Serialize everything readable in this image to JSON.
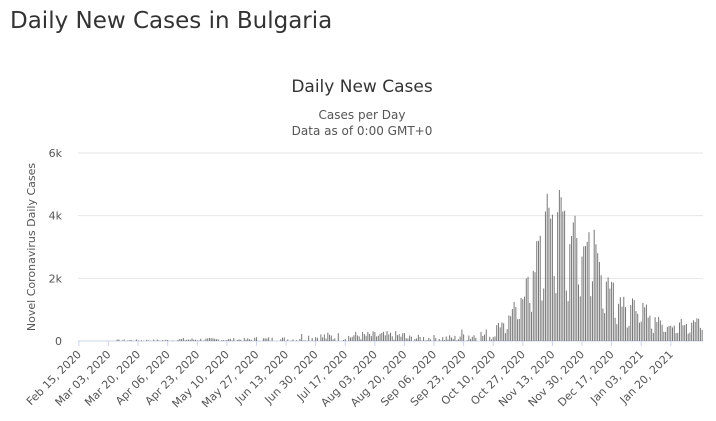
{
  "page": {
    "heading": "Daily New Cases in Bulgaria"
  },
  "chart_data": {
    "type": "bar",
    "title": "Daily New Cases",
    "subtitle": "Cases per Day",
    "subtitle2": "Data as of 0:00 GMT+0",
    "xlabel": "",
    "ylabel": "Novel Coronavirus Daily Cases",
    "ylim": [
      0,
      6000
    ],
    "y_ticks": [
      0,
      2000,
      4000,
      6000
    ],
    "y_tick_labels": [
      "0",
      "2k",
      "4k",
      "6k"
    ],
    "x_start": "Feb 15, 2020",
    "x_end": "Feb 07, 2021",
    "x_tick_labels": [
      "Feb 15, 2020",
      "Mar 03, 2020",
      "Mar 20, 2020",
      "Apr 06, 2020",
      "Apr 23, 2020",
      "May 10, 2020",
      "May 27, 2020",
      "Jun 13, 2020",
      "Jun 30, 2020",
      "Jul 17, 2020",
      "Aug 03, 2020",
      "Aug 20, 2020",
      "Sep 06, 2020",
      "Sep 23, 2020",
      "Oct 10, 2020",
      "Oct 27, 2020",
      "Nov 13, 2020",
      "Nov 30, 2020",
      "Dec 17, 2020",
      "Jan 03, 2021",
      "Jan 20, 2021"
    ],
    "grid": true,
    "legend": "none",
    "bar_color": "#777777",
    "phases": [
      {
        "from": "Feb 15, 2020",
        "to": "Mar 07, 2020",
        "base": 0,
        "amp": 0
      },
      {
        "from": "Mar 08, 2020",
        "to": "Apr 10, 2020",
        "base": 20,
        "amp": 30
      },
      {
        "from": "Apr 11, 2020",
        "to": "May 25, 2020",
        "base": 45,
        "amp": 55
      },
      {
        "from": "May 26, 2020",
        "to": "Jun 20, 2020",
        "base": 50,
        "amp": 90
      },
      {
        "from": "Jun 21, 2020",
        "to": "Jul 20, 2020",
        "base": 130,
        "amp": 160
      },
      {
        "from": "Jul 21, 2020",
        "to": "Aug 20, 2020",
        "base": 170,
        "amp": 150
      },
      {
        "from": "Aug 21, 2020",
        "to": "Sep 20, 2020",
        "base": 90,
        "amp": 110
      },
      {
        "from": "Sep 21, 2020",
        "to": "Oct 10, 2020",
        "base": 180,
        "amp": 230
      }
    ],
    "peak_points": [
      {
        "date": "Oct 10, 2020",
        "value": 400
      },
      {
        "date": "Oct 17, 2020",
        "value": 700
      },
      {
        "date": "Oct 22, 2020",
        "value": 1100
      },
      {
        "date": "Oct 27, 2020",
        "value": 1600
      },
      {
        "date": "Nov 01, 2020",
        "value": 2400
      },
      {
        "date": "Nov 05, 2020",
        "value": 3000
      },
      {
        "date": "Nov 09, 2020",
        "value": 4000
      },
      {
        "date": "Nov 14, 2020",
        "value": 4700
      },
      {
        "date": "Nov 19, 2020",
        "value": 4300
      },
      {
        "date": "Nov 25, 2020",
        "value": 3600
      },
      {
        "date": "Dec 01, 2020",
        "value": 3400
      },
      {
        "date": "Dec 04, 2020",
        "value": 3900
      },
      {
        "date": "Dec 10, 2020",
        "value": 2700
      },
      {
        "date": "Dec 16, 2020",
        "value": 2000
      },
      {
        "date": "Dec 22, 2020",
        "value": 1500
      },
      {
        "date": "Dec 29, 2020",
        "value": 1200
      },
      {
        "date": "Jan 05, 2021",
        "value": 1100
      },
      {
        "date": "Jan 12, 2021",
        "value": 700
      },
      {
        "date": "Jan 20, 2021",
        "value": 550
      },
      {
        "date": "Jan 28, 2021",
        "value": 650
      },
      {
        "date": "Feb 07, 2021",
        "value": 850
      }
    ]
  }
}
